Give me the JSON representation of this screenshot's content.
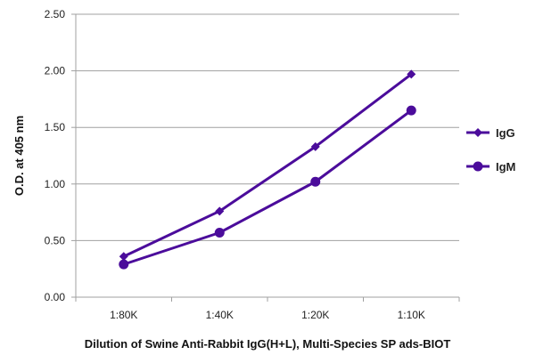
{
  "chart_data": {
    "type": "line",
    "title": "",
    "xlabel": "Dilution of Swine Anti-Rabbit IgG(H+L), Multi-Species SP ads-BIOT",
    "ylabel": "O.D. at 405 nm",
    "categories": [
      "1:80K",
      "1:40K",
      "1:20K",
      "1:10K"
    ],
    "ylim": [
      0,
      2.5
    ],
    "yticks": [
      "0.00",
      "0.50",
      "1.00",
      "1.50",
      "2.00",
      "2.50"
    ],
    "grid": "horizontal",
    "legend_position": "right",
    "series": [
      {
        "name": "IgG",
        "marker": "diamond",
        "color": "#4B0C9B",
        "values": [
          0.36,
          0.76,
          1.33,
          1.97
        ]
      },
      {
        "name": "IgM",
        "marker": "circle",
        "color": "#4B0C9B",
        "values": [
          0.29,
          0.57,
          1.02,
          1.65
        ]
      }
    ]
  }
}
